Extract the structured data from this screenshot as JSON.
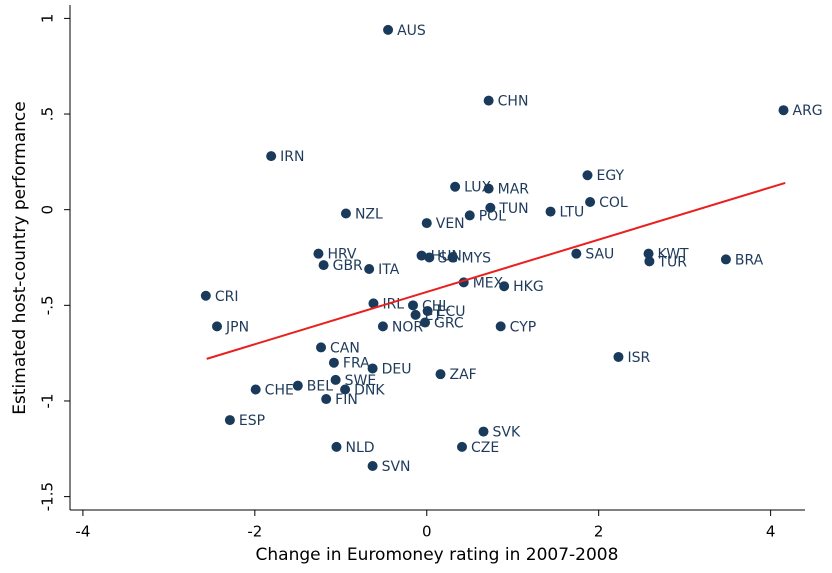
{
  "chart_data": {
    "type": "scatter",
    "x_label": "Change in Euromoney rating in 2007-2008",
    "y_label": "Estimated host-country performance",
    "xlim": [
      -4.15,
      4.4
    ],
    "ylim": [
      -1.57,
      1.07
    ],
    "xticks": [
      -4,
      -2,
      0,
      2,
      4
    ],
    "yticks": [
      -1.5,
      -1,
      {
        "value": -0.5,
        "label": "-.5"
      },
      0,
      {
        "value": 0.5,
        "label": ".5"
      },
      1
    ],
    "series": [
      {
        "color": "#1a3a5c",
        "labels": [
          "AUS",
          "CHN",
          "ARG",
          "IRN",
          "LUX",
          "MAR",
          "EGY",
          "COL",
          "TUN",
          "LTU",
          "POL",
          "NZL",
          "VEN",
          "HRV",
          "HUN",
          "SG",
          "MYS",
          "SAU",
          "KWT",
          "TUR",
          "BRA",
          "GBR",
          "ITA",
          "MEX",
          "HKG",
          "CRI",
          "IRL",
          "CHL",
          "ECU",
          "ET",
          "GRC",
          "NOR",
          "CYP",
          "JPN",
          "CAN",
          "ISR",
          "FRA",
          "DEU",
          "ZAF",
          "SWE",
          "BEL",
          "CHE",
          "DNK",
          "FIN",
          "ESP",
          "SVK",
          "NLD",
          "CZE",
          "SVN"
        ],
        "x": [
          -0.45,
          0.72,
          4.15,
          -1.81,
          0.33,
          0.72,
          1.87,
          1.9,
          0.74,
          1.44,
          0.5,
          -0.94,
          0.0,
          -1.26,
          -0.06,
          0.03,
          0.3,
          1.74,
          2.58,
          2.59,
          3.48,
          -1.2,
          -0.67,
          0.43,
          0.9,
          -2.57,
          -0.62,
          -0.16,
          0.01,
          -0.13,
          -0.02,
          -0.51,
          0.86,
          -2.44,
          -1.23,
          2.23,
          -1.08,
          -0.63,
          0.16,
          -1.06,
          -1.5,
          -1.99,
          -0.95,
          -1.17,
          -2.29,
          0.66,
          -1.05,
          0.41,
          -0.63
        ],
        "values": [
          0.94,
          0.57,
          0.52,
          0.28,
          0.12,
          0.11,
          0.18,
          0.04,
          0.01,
          -0.01,
          -0.03,
          -0.02,
          -0.07,
          -0.23,
          -0.24,
          -0.25,
          -0.25,
          -0.23,
          -0.23,
          -0.27,
          -0.26,
          -0.29,
          -0.31,
          -0.38,
          -0.4,
          -0.45,
          -0.49,
          -0.5,
          -0.53,
          -0.55,
          -0.59,
          -0.61,
          -0.61,
          -0.61,
          -0.72,
          -0.77,
          -0.8,
          -0.83,
          -0.86,
          -0.89,
          -0.92,
          -0.94,
          -0.94,
          -0.99,
          -1.1,
          -1.16,
          -1.24,
          -1.24,
          -1.34
        ]
      }
    ],
    "fit_line": {
      "color": "#e8201e",
      "x": [
        -2.56,
        4.17
      ],
      "y": [
        -0.78,
        0.14
      ]
    }
  }
}
